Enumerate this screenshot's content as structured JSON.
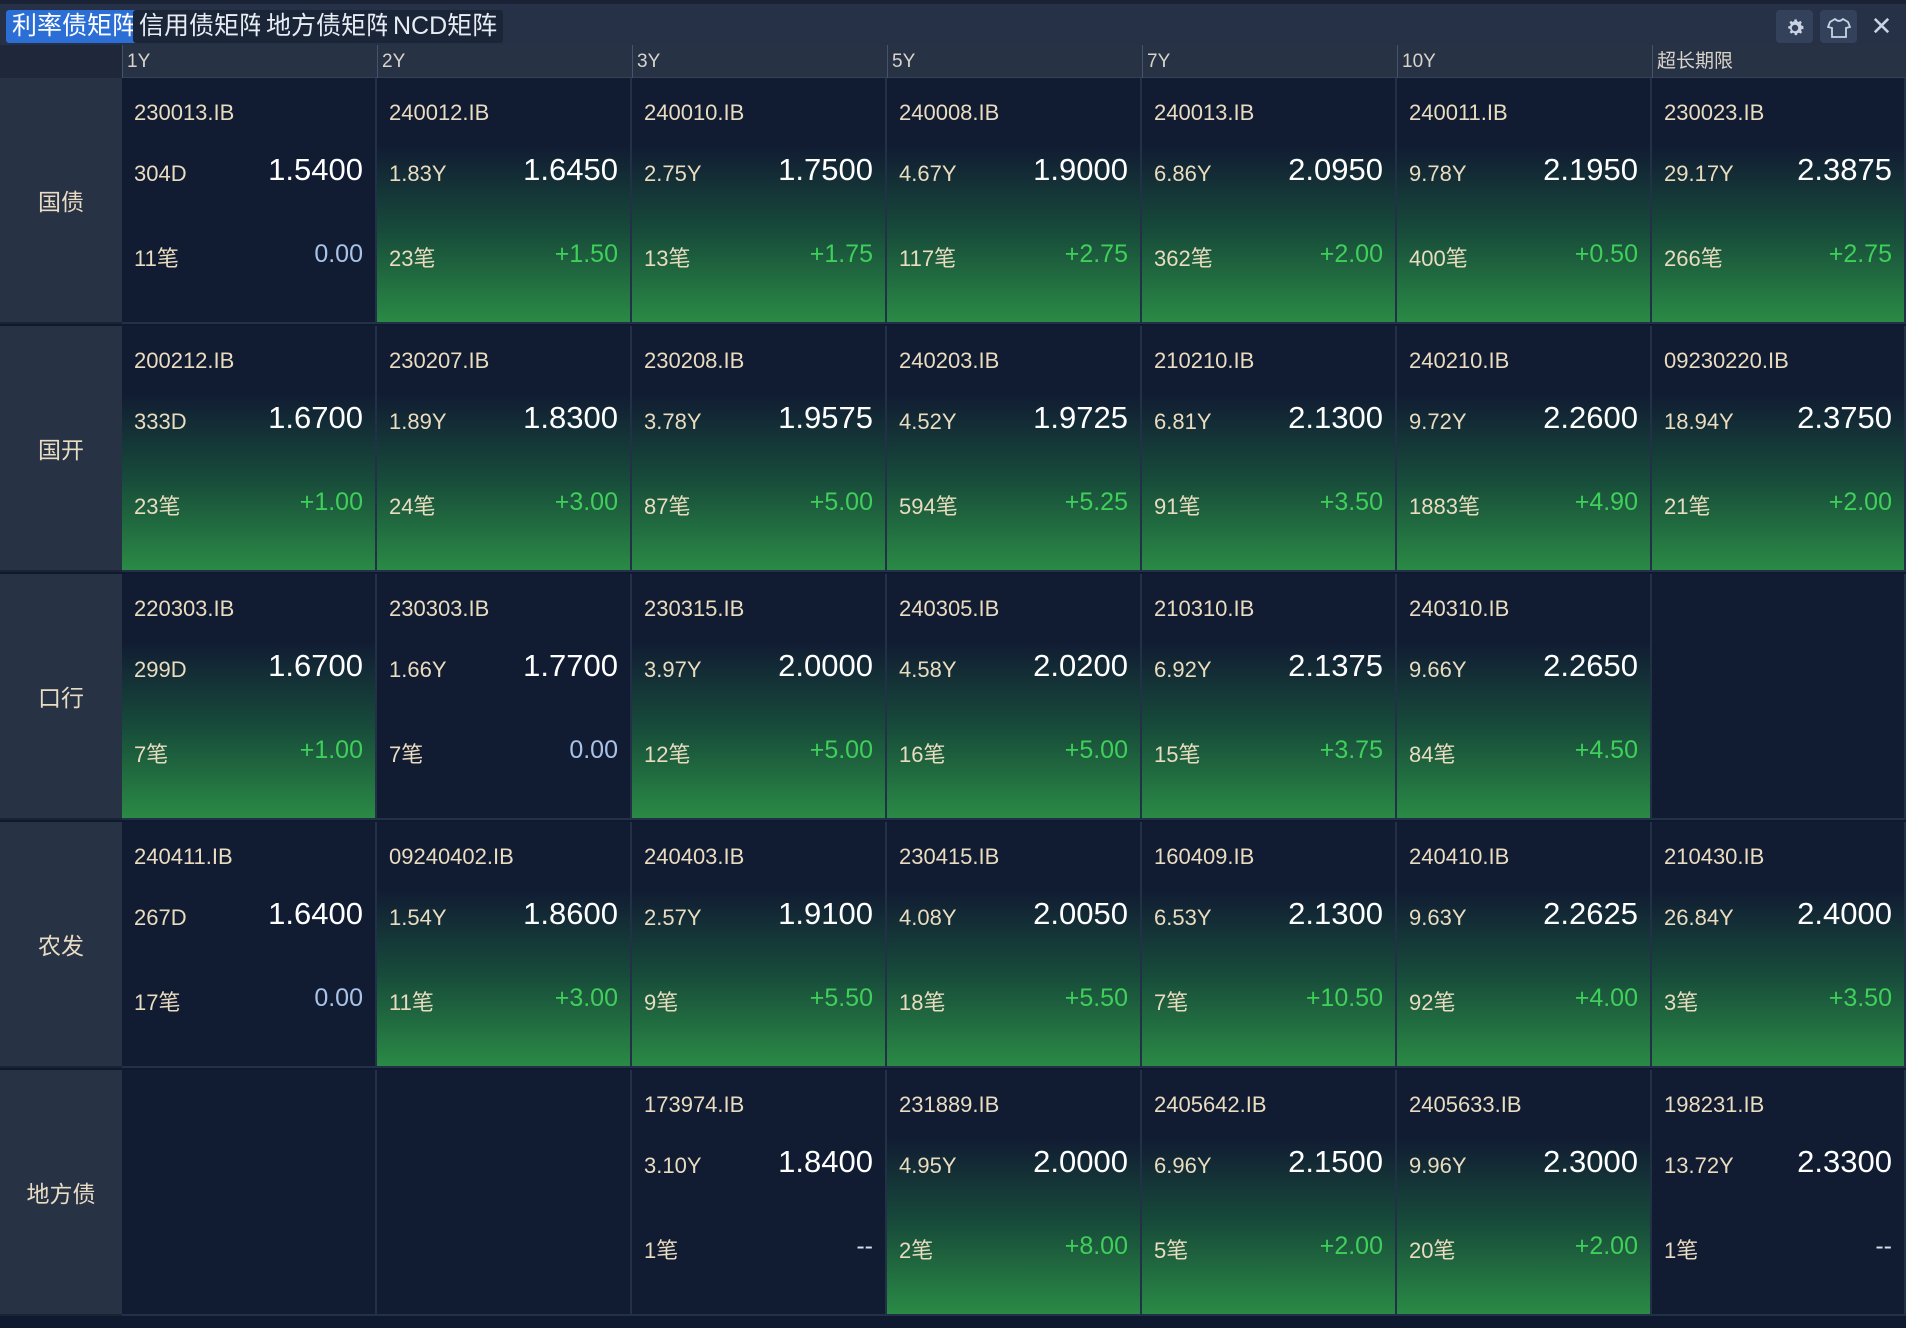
{
  "tabs": [
    {
      "label": "利率债矩阵",
      "active": true
    },
    {
      "label": "信用债矩阵",
      "active": false
    },
    {
      "label": "地方债矩阵",
      "active": false
    },
    {
      "label": "NCD矩阵",
      "active": false
    }
  ],
  "toolbar_icons": [
    "gear-icon",
    "shirt-icon",
    "close-icon"
  ],
  "columns": [
    "1Y",
    "2Y",
    "3Y",
    "5Y",
    "7Y",
    "10Y",
    "超长期限"
  ],
  "rows": [
    {
      "label": "国债",
      "cells": [
        {
          "code": "230013.IB",
          "term": "304D",
          "yield": "1.5400",
          "count": "11笔",
          "change": "0.00",
          "up": false
        },
        {
          "code": "240012.IB",
          "term": "1.83Y",
          "yield": "1.6450",
          "count": "23笔",
          "change": "+1.50",
          "up": true
        },
        {
          "code": "240010.IB",
          "term": "2.75Y",
          "yield": "1.7500",
          "count": "13笔",
          "change": "+1.75",
          "up": true
        },
        {
          "code": "240008.IB",
          "term": "4.67Y",
          "yield": "1.9000",
          "count": "117笔",
          "change": "+2.75",
          "up": true
        },
        {
          "code": "240013.IB",
          "term": "6.86Y",
          "yield": "2.0950",
          "count": "362笔",
          "change": "+2.00",
          "up": true
        },
        {
          "code": "240011.IB",
          "term": "9.78Y",
          "yield": "2.1950",
          "count": "400笔",
          "change": "+0.50",
          "up": true
        },
        {
          "code": "230023.IB",
          "term": "29.17Y",
          "yield": "2.3875",
          "count": "266笔",
          "change": "+2.75",
          "up": true
        }
      ]
    },
    {
      "label": "国开",
      "cells": [
        {
          "code": "200212.IB",
          "term": "333D",
          "yield": "1.6700",
          "count": "23笔",
          "change": "+1.00",
          "up": true
        },
        {
          "code": "230207.IB",
          "term": "1.89Y",
          "yield": "1.8300",
          "count": "24笔",
          "change": "+3.00",
          "up": true
        },
        {
          "code": "230208.IB",
          "term": "3.78Y",
          "yield": "1.9575",
          "count": "87笔",
          "change": "+5.00",
          "up": true
        },
        {
          "code": "240203.IB",
          "term": "4.52Y",
          "yield": "1.9725",
          "count": "594笔",
          "change": "+5.25",
          "up": true
        },
        {
          "code": "210210.IB",
          "term": "6.81Y",
          "yield": "2.1300",
          "count": "91笔",
          "change": "+3.50",
          "up": true
        },
        {
          "code": "240210.IB",
          "term": "9.72Y",
          "yield": "2.2600",
          "count": "1883笔",
          "change": "+4.90",
          "up": true
        },
        {
          "code": "09230220.IB",
          "term": "18.94Y",
          "yield": "2.3750",
          "count": "21笔",
          "change": "+2.00",
          "up": true
        }
      ]
    },
    {
      "label": "口行",
      "cells": [
        {
          "code": "220303.IB",
          "term": "299D",
          "yield": "1.6700",
          "count": "7笔",
          "change": "+1.00",
          "up": true
        },
        {
          "code": "230303.IB",
          "term": "1.66Y",
          "yield": "1.7700",
          "count": "7笔",
          "change": "0.00",
          "up": false
        },
        {
          "code": "230315.IB",
          "term": "3.97Y",
          "yield": "2.0000",
          "count": "12笔",
          "change": "+5.00",
          "up": true
        },
        {
          "code": "240305.IB",
          "term": "4.58Y",
          "yield": "2.0200",
          "count": "16笔",
          "change": "+5.00",
          "up": true
        },
        {
          "code": "210310.IB",
          "term": "6.92Y",
          "yield": "2.1375",
          "count": "15笔",
          "change": "+3.75",
          "up": true
        },
        {
          "code": "240310.IB",
          "term": "9.66Y",
          "yield": "2.2650",
          "count": "84笔",
          "change": "+4.50",
          "up": true
        },
        null
      ]
    },
    {
      "label": "农发",
      "cells": [
        {
          "code": "240411.IB",
          "term": "267D",
          "yield": "1.6400",
          "count": "17笔",
          "change": "0.00",
          "up": false
        },
        {
          "code": "09240402.IB",
          "term": "1.54Y",
          "yield": "1.8600",
          "count": "11笔",
          "change": "+3.00",
          "up": true
        },
        {
          "code": "240403.IB",
          "term": "2.57Y",
          "yield": "1.9100",
          "count": "9笔",
          "change": "+5.50",
          "up": true
        },
        {
          "code": "230415.IB",
          "term": "4.08Y",
          "yield": "2.0050",
          "count": "18笔",
          "change": "+5.50",
          "up": true
        },
        {
          "code": "160409.IB",
          "term": "6.53Y",
          "yield": "2.1300",
          "count": "7笔",
          "change": "+10.50",
          "up": true
        },
        {
          "code": "240410.IB",
          "term": "9.63Y",
          "yield": "2.2625",
          "count": "92笔",
          "change": "+4.00",
          "up": true
        },
        {
          "code": "210430.IB",
          "term": "26.84Y",
          "yield": "2.4000",
          "count": "3笔",
          "change": "+3.50",
          "up": true
        }
      ]
    },
    {
      "label": "地方债",
      "cells": [
        null,
        null,
        {
          "code": "173974.IB",
          "term": "3.10Y",
          "yield": "1.8400",
          "count": "1笔",
          "change": "--",
          "up": false
        },
        {
          "code": "231889.IB",
          "term": "4.95Y",
          "yield": "2.0000",
          "count": "2笔",
          "change": "+8.00",
          "up": true
        },
        {
          "code": "2405642.IB",
          "term": "6.96Y",
          "yield": "2.1500",
          "count": "5笔",
          "change": "+2.00",
          "up": true
        },
        {
          "code": "2405633.IB",
          "term": "9.96Y",
          "yield": "2.3000",
          "count": "20笔",
          "change": "+2.00",
          "up": true
        },
        {
          "code": "198231.IB",
          "term": "13.72Y",
          "yield": "2.3300",
          "count": "1笔",
          "change": "--",
          "up": false
        }
      ]
    }
  ]
}
